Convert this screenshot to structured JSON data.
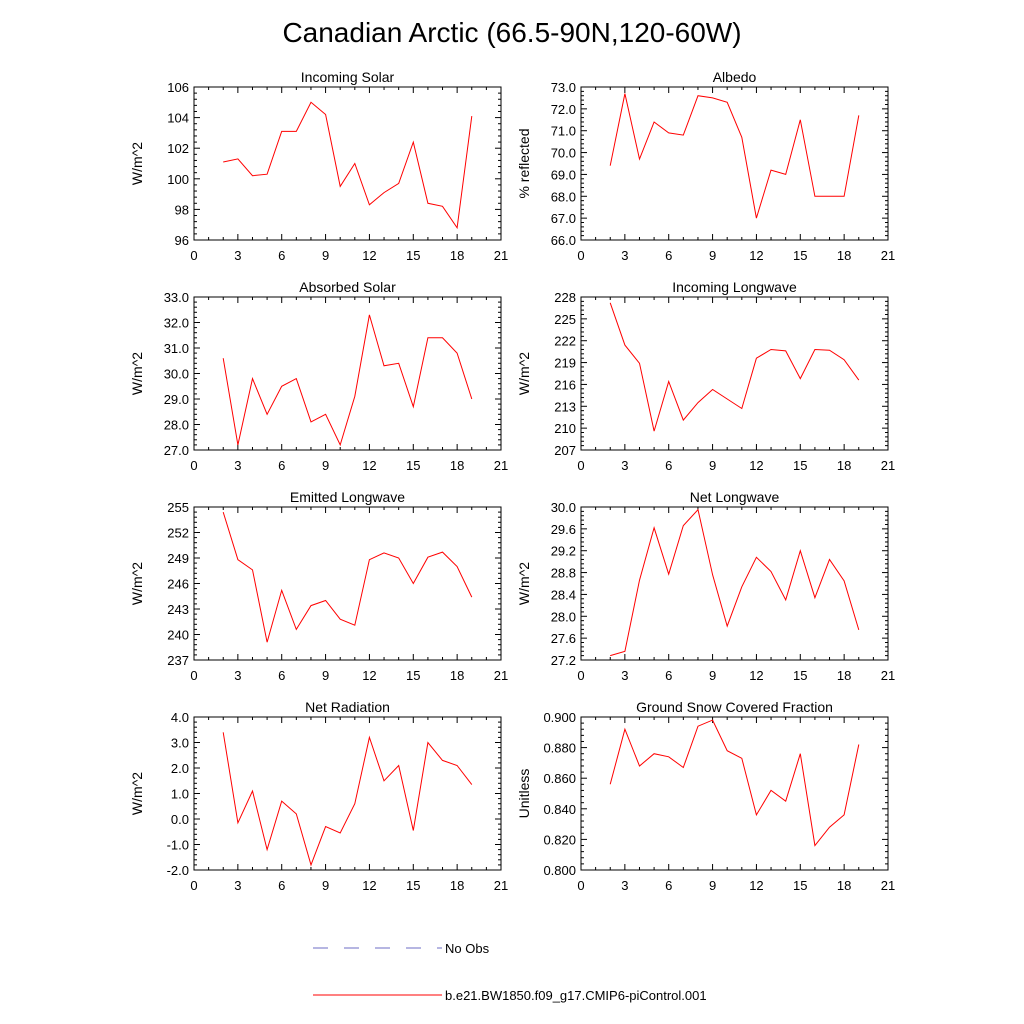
{
  "figure": {
    "title": "Canadian Arctic (66.5-90N,120-60W)"
  },
  "legend": {
    "items": [
      {
        "label": "No Obs",
        "color": "#6d6dc4",
        "dash": true
      },
      {
        "label": "b.e21.BW1850.f09_g17.CMIP6-piControl.001",
        "color": "#ff0000",
        "dash": false
      }
    ]
  },
  "chart_data": [
    {
      "type": "line",
      "title": "Incoming Solar",
      "xlabel": "",
      "ylabel": "W/m^2",
      "xlim": [
        0,
        21
      ],
      "ylim": [
        96,
        106
      ],
      "xticks": [
        0,
        3,
        6,
        9,
        12,
        15,
        18,
        21
      ],
      "yticks": [
        96,
        98,
        100,
        102,
        104,
        106
      ],
      "ytick_labels": [
        "96",
        "98",
        "100",
        "102",
        "104",
        "106"
      ],
      "x": [
        2,
        3,
        4,
        5,
        6,
        7,
        8,
        9,
        10,
        11,
        12,
        13,
        14,
        15,
        16,
        17,
        18,
        19
      ],
      "series": [
        {
          "name": "b.e21.BW1850.f09_g17.CMIP6-piControl.001",
          "color": "#ff0000",
          "values": [
            101.1,
            101.3,
            100.2,
            100.3,
            103.1,
            103.1,
            105.0,
            104.2,
            99.5,
            101.0,
            98.3,
            99.1,
            99.7,
            102.4,
            98.4,
            98.2,
            96.8,
            104.1
          ]
        }
      ]
    },
    {
      "type": "line",
      "title": "Albedo",
      "xlabel": "",
      "ylabel": "% reflected",
      "xlim": [
        0,
        21
      ],
      "ylim": [
        66,
        73
      ],
      "xticks": [
        0,
        3,
        6,
        9,
        12,
        15,
        18,
        21
      ],
      "yticks": [
        66,
        67,
        68,
        69,
        70,
        71,
        72,
        73
      ],
      "ytick_labels": [
        "66.0",
        "67.0",
        "68.0",
        "69.0",
        "70.0",
        "71.0",
        "72.0",
        "73.0"
      ],
      "x": [
        2,
        3,
        4,
        5,
        6,
        7,
        8,
        9,
        10,
        11,
        12,
        13,
        14,
        15,
        16,
        17,
        18,
        19
      ],
      "series": [
        {
          "name": "b.e21.BW1850.f09_g17.CMIP6-piControl.001",
          "color": "#ff0000",
          "values": [
            69.4,
            72.7,
            69.7,
            71.4,
            70.9,
            70.8,
            72.6,
            72.5,
            72.3,
            70.7,
            67.0,
            69.2,
            69.0,
            71.5,
            68.0,
            68.0,
            68.0,
            71.7
          ]
        }
      ]
    },
    {
      "type": "line",
      "title": "Absorbed Solar",
      "xlabel": "",
      "ylabel": "W/m^2",
      "xlim": [
        0,
        21
      ],
      "ylim": [
        27,
        33
      ],
      "xticks": [
        0,
        3,
        6,
        9,
        12,
        15,
        18,
        21
      ],
      "yticks": [
        27,
        28,
        29,
        30,
        31,
        32,
        33
      ],
      "ytick_labels": [
        "27.0",
        "28.0",
        "29.0",
        "30.0",
        "31.0",
        "32.0",
        "33.0"
      ],
      "x": [
        2,
        3,
        4,
        5,
        6,
        7,
        8,
        9,
        10,
        11,
        12,
        13,
        14,
        15,
        16,
        17,
        18,
        19
      ],
      "series": [
        {
          "name": "b.e21.BW1850.f09_g17.CMIP6-piControl.001",
          "color": "#ff0000",
          "values": [
            30.6,
            27.2,
            29.8,
            28.4,
            29.5,
            29.8,
            28.1,
            28.4,
            27.2,
            29.1,
            32.3,
            30.3,
            30.4,
            28.7,
            31.4,
            31.4,
            30.8,
            29.0
          ]
        }
      ]
    },
    {
      "type": "line",
      "title": "Incoming Longwave",
      "xlabel": "",
      "ylabel": "W/m^2",
      "xlim": [
        0,
        21
      ],
      "ylim": [
        207,
        228
      ],
      "xticks": [
        0,
        3,
        6,
        9,
        12,
        15,
        18,
        21
      ],
      "yticks": [
        207,
        210,
        213,
        216,
        219,
        222,
        225,
        228
      ],
      "ytick_labels": [
        "207",
        "210",
        "213",
        "216",
        "219",
        "222",
        "225",
        "228"
      ],
      "x": [
        2,
        3,
        4,
        5,
        6,
        7,
        8,
        9,
        10,
        11,
        12,
        13,
        14,
        15,
        16,
        17,
        18,
        19
      ],
      "series": [
        {
          "name": "b.e21.BW1850.f09_g17.CMIP6-piControl.001",
          "color": "#ff0000",
          "values": [
            227.2,
            221.4,
            218.9,
            209.6,
            216.4,
            211.1,
            213.5,
            215.3,
            214.0,
            212.7,
            219.6,
            220.8,
            220.6,
            216.8,
            220.8,
            220.7,
            219.4,
            216.6
          ]
        }
      ]
    },
    {
      "type": "line",
      "title": "Emitted Longwave",
      "xlabel": "",
      "ylabel": "W/m^2",
      "xlim": [
        0,
        21
      ],
      "ylim": [
        237,
        255
      ],
      "xticks": [
        0,
        3,
        6,
        9,
        12,
        15,
        18,
        21
      ],
      "yticks": [
        237,
        240,
        243,
        246,
        249,
        252,
        255
      ],
      "ytick_labels": [
        "237",
        "240",
        "243",
        "246",
        "249",
        "252",
        "255"
      ],
      "x": [
        2,
        3,
        4,
        5,
        6,
        7,
        8,
        9,
        10,
        11,
        12,
        13,
        14,
        15,
        16,
        17,
        18,
        19
      ],
      "series": [
        {
          "name": "b.e21.BW1850.f09_g17.CMIP6-piControl.001",
          "color": "#ff0000",
          "values": [
            254.4,
            248.8,
            247.6,
            239.1,
            245.2,
            240.6,
            243.4,
            244.0,
            241.8,
            241.1,
            248.8,
            249.6,
            249.0,
            246.0,
            249.1,
            249.7,
            248.0,
            244.4
          ]
        }
      ]
    },
    {
      "type": "line",
      "title": "Net Longwave",
      "xlabel": "",
      "ylabel": "W/m^2",
      "xlim": [
        0,
        21
      ],
      "ylim": [
        27.2,
        30.0
      ],
      "xticks": [
        0,
        3,
        6,
        9,
        12,
        15,
        18,
        21
      ],
      "yticks": [
        27.2,
        27.6,
        28.0,
        28.4,
        28.8,
        29.2,
        29.6,
        30.0
      ],
      "ytick_labels": [
        "27.2",
        "27.6",
        "28.0",
        "28.4",
        "28.8",
        "29.2",
        "29.6",
        "30.0"
      ],
      "x": [
        2,
        3,
        4,
        5,
        6,
        7,
        8,
        9,
        10,
        11,
        12,
        13,
        14,
        15,
        16,
        17,
        18,
        19
      ],
      "series": [
        {
          "name": "b.e21.BW1850.f09_g17.CMIP6-piControl.001",
          "color": "#ff0000",
          "values": [
            27.28,
            27.36,
            28.66,
            29.62,
            28.77,
            29.66,
            29.95,
            28.76,
            27.82,
            28.54,
            29.08,
            28.82,
            28.3,
            29.2,
            28.34,
            29.04,
            28.65,
            27.75
          ]
        }
      ]
    },
    {
      "type": "line",
      "title": "Net Radiation",
      "xlabel": "",
      "ylabel": "W/m^2",
      "xlim": [
        0,
        21
      ],
      "ylim": [
        -2,
        4
      ],
      "xticks": [
        0,
        3,
        6,
        9,
        12,
        15,
        18,
        21
      ],
      "yticks": [
        -2,
        -1,
        0,
        1,
        2,
        3,
        4
      ],
      "ytick_labels": [
        "-2.0",
        "-1.0",
        "0.0",
        "1.0",
        "2.0",
        "3.0",
        "4.0"
      ],
      "x": [
        2,
        3,
        4,
        5,
        6,
        7,
        8,
        9,
        10,
        11,
        12,
        13,
        14,
        15,
        16,
        17,
        18,
        19
      ],
      "series": [
        {
          "name": "b.e21.BW1850.f09_g17.CMIP6-piControl.001",
          "color": "#ff0000",
          "values": [
            3.4,
            -0.15,
            1.1,
            -1.2,
            0.7,
            0.2,
            -1.8,
            -0.3,
            -0.55,
            0.6,
            3.2,
            1.5,
            2.1,
            -0.45,
            3.0,
            2.3,
            2.1,
            1.35
          ]
        }
      ]
    },
    {
      "type": "line",
      "title": "Ground Snow Covered Fraction",
      "xlabel": "",
      "ylabel": "Unitless",
      "xlim": [
        0,
        21
      ],
      "ylim": [
        0.8,
        0.9
      ],
      "xticks": [
        0,
        3,
        6,
        9,
        12,
        15,
        18,
        21
      ],
      "yticks": [
        0.8,
        0.82,
        0.84,
        0.86,
        0.88,
        0.9
      ],
      "ytick_labels": [
        "0.800",
        "0.820",
        "0.840",
        "0.860",
        "0.880",
        "0.900"
      ],
      "x": [
        2,
        3,
        4,
        5,
        6,
        7,
        8,
        9,
        10,
        11,
        12,
        13,
        14,
        15,
        16,
        17,
        18,
        19
      ],
      "series": [
        {
          "name": "b.e21.BW1850.f09_g17.CMIP6-piControl.001",
          "color": "#ff0000",
          "values": [
            0.856,
            0.892,
            0.868,
            0.876,
            0.874,
            0.867,
            0.894,
            0.898,
            0.878,
            0.873,
            0.836,
            0.852,
            0.845,
            0.876,
            0.816,
            0.828,
            0.836,
            0.882
          ]
        }
      ]
    }
  ]
}
